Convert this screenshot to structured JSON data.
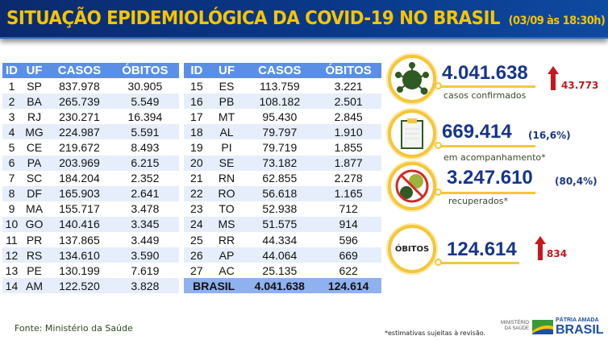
{
  "header": {
    "title": "SITUAÇÃO EPIDEMIOLÓGICA DA COVID-19 NO BRASIL",
    "timestamp": "(03/09 às 18:30h)"
  },
  "table": {
    "columns": [
      "ID",
      "UF",
      "CASOS",
      "ÓBITOS"
    ],
    "rows_left": [
      [
        "1",
        "SP",
        "837.978",
        "30.905"
      ],
      [
        "2",
        "BA",
        "265.739",
        "5.549"
      ],
      [
        "3",
        "RJ",
        "230.271",
        "16.394"
      ],
      [
        "4",
        "MG",
        "224.987",
        "5.591"
      ],
      [
        "5",
        "CE",
        "219.672",
        "8.493"
      ],
      [
        "6",
        "PA",
        "203.969",
        "6.215"
      ],
      [
        "7",
        "SC",
        "184.204",
        "2.352"
      ],
      [
        "8",
        "DF",
        "165.903",
        "2.641"
      ],
      [
        "9",
        "MA",
        "155.717",
        "3.478"
      ],
      [
        "10",
        "GO",
        "140.416",
        "3.345"
      ],
      [
        "11",
        "PR",
        "137.865",
        "3.449"
      ],
      [
        "12",
        "RS",
        "134.610",
        "3.590"
      ],
      [
        "13",
        "PE",
        "130.199",
        "7.619"
      ],
      [
        "14",
        "AM",
        "122.520",
        "3.828"
      ]
    ],
    "rows_right": [
      [
        "15",
        "ES",
        "113.759",
        "3.221"
      ],
      [
        "16",
        "PB",
        "108.182",
        "2.501"
      ],
      [
        "17",
        "MT",
        "95.430",
        "2.845"
      ],
      [
        "18",
        "AL",
        "79.797",
        "1.910"
      ],
      [
        "19",
        "PI",
        "79.719",
        "1.855"
      ],
      [
        "20",
        "SE",
        "73.182",
        "1.877"
      ],
      [
        "21",
        "RN",
        "62.855",
        "2.278"
      ],
      [
        "22",
        "RO",
        "56.618",
        "1.165"
      ],
      [
        "23",
        "TO",
        "52.938",
        "712"
      ],
      [
        "24",
        "MS",
        "51.575",
        "914"
      ],
      [
        "25",
        "RR",
        "44.334",
        "596"
      ],
      [
        "26",
        "AP",
        "44.064",
        "669"
      ],
      [
        "27",
        "AC",
        "25.135",
        "622"
      ]
    ],
    "total": {
      "label": "BRASIL",
      "casos": "4.041.638",
      "obitos": "124.614"
    }
  },
  "stats": {
    "confirmed": {
      "value": "4.041.638",
      "label": "casos confirmados",
      "increase": "43.773",
      "icon": "virus-icon"
    },
    "monitoring": {
      "value": "669.414",
      "percent": "(16,6%)",
      "label": "em acompanhamento*",
      "icon": "clipboard-icon"
    },
    "recovered": {
      "value": "3.247.610",
      "percent": "(80,4%)",
      "label": "recuperados*",
      "icon": "no-virus-icon"
    },
    "deaths": {
      "value": "124.614",
      "badge": "ÓBITOS",
      "increase": "834"
    }
  },
  "footer": {
    "source": "Fonte: Ministério da Saúde",
    "note": "*estimativas sujeitas à revisão.",
    "ministry": "MINISTÉRIO DA SAÚDE",
    "slogan": "PÁTRIA AMADA",
    "brand": "BRASIL"
  },
  "colors": {
    "header_bg": "#0a3a8c",
    "title": "#f5c400",
    "table_header": "#5b8fe6",
    "number": "#17358a",
    "increase": "#c8161d",
    "ring": "#f5c63a"
  }
}
